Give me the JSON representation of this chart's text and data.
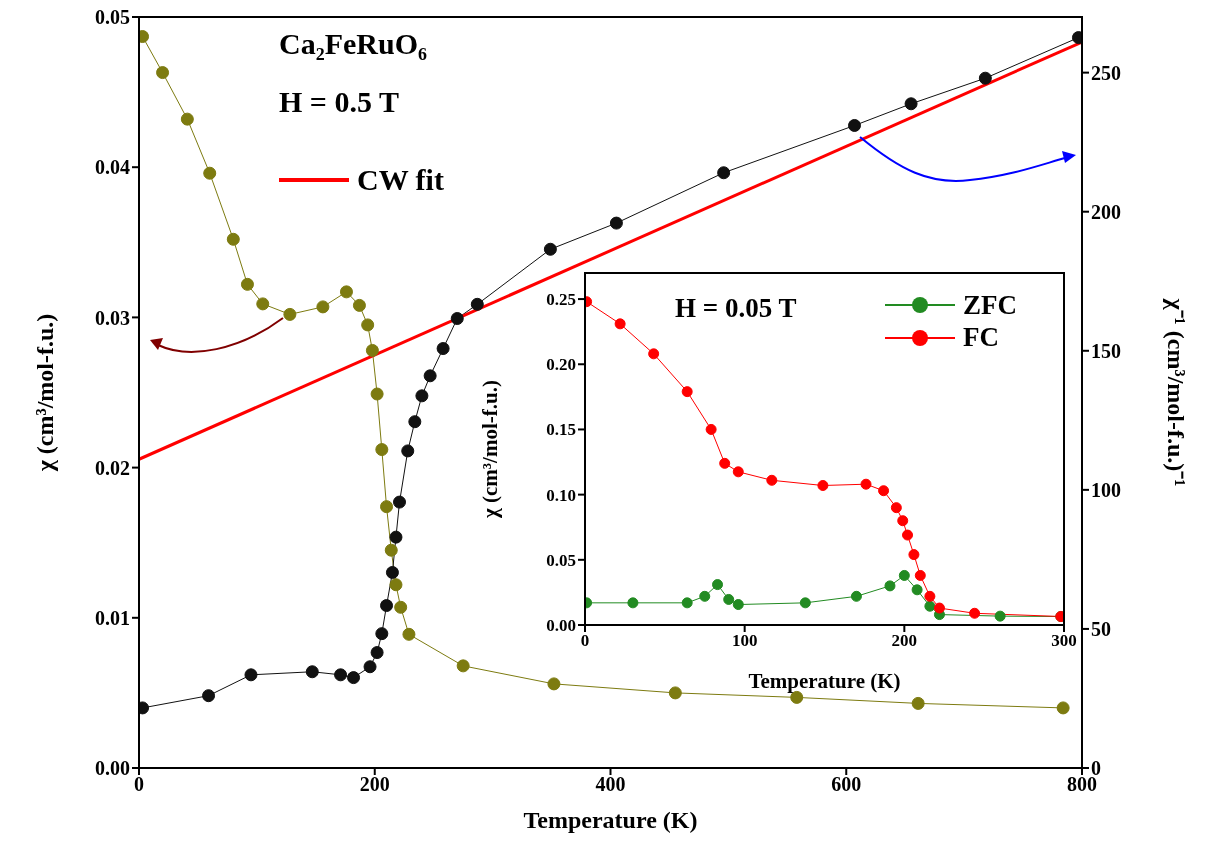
{
  "chart_data": [
    {
      "type": "line",
      "xlabel": "Temperature (K)",
      "ylabel": "χ (cm³/mol-f.u.)",
      "y2label": "χ⁻¹ (cm³/mol-f.u.)⁻¹",
      "annotations": [
        "Ca₂FeRuO₆",
        "H = 0.5 T"
      ],
      "xlim": [
        0,
        800
      ],
      "xticks": [
        0,
        200,
        400,
        600,
        800
      ],
      "ylim": [
        0,
        0.05
      ],
      "yticks": [
        {
          "value": 0,
          "label": "0.00"
        },
        0.01,
        0.02,
        0.03,
        0.04,
        0.05
      ],
      "y2lim": [
        0,
        270
      ],
      "y2ticks": [
        0,
        50,
        100,
        150,
        200,
        250
      ],
      "legend": "top left",
      "grid": false,
      "series": [
        {
          "marker": "circle",
          "color": "#7d7b10",
          "x": [
            3,
            20,
            41,
            60,
            80,
            92,
            105,
            128,
            156,
            176,
            187,
            194,
            198,
            202,
            206,
            210,
            214,
            218,
            222,
            229,
            275,
            352,
            455,
            558,
            661,
            784
          ],
          "values": [
            0.0487,
            0.0463,
            0.0432,
            0.0396,
            0.0352,
            0.0322,
            0.0309,
            0.0302,
            0.0307,
            0.0317,
            0.0308,
            0.0295,
            0.0278,
            0.0249,
            0.0212,
            0.0174,
            0.0145,
            0.0122,
            0.0107,
            0.0089,
            0.0068,
            0.0056,
            0.005,
            0.0047,
            0.0043,
            0.004
          ]
        },
        {
          "marker": "circle",
          "axis": "y2",
          "color": "#111111",
          "x": [
            3,
            59,
            95,
            147,
            171,
            182,
            196,
            202,
            206,
            210,
            215,
            218,
            221,
            228,
            234,
            240,
            247,
            258,
            270,
            287,
            349,
            405,
            496,
            607,
            655,
            718,
            797
          ],
          "values": [
            21.6,
            26,
            33.5,
            34.6,
            33.5,
            32.5,
            36.4,
            41.5,
            48.3,
            58.4,
            70.3,
            83,
            95.6,
            114,
            124.5,
            133.8,
            141,
            150.8,
            161.6,
            166.7,
            186.5,
            195.9,
            214,
            231,
            238.8,
            248,
            262.6
          ]
        },
        {
          "name": "CW fit",
          "marker": "none",
          "axis": "y2",
          "color": "#ff0000",
          "x": [
            0,
            800
          ],
          "values": [
            111,
            261
          ]
        }
      ]
    },
    {
      "type": "line",
      "xlabel": "Temperature (K)",
      "ylabel": "χ (cm³/mol-f.u.)",
      "annotations": [
        "H = 0.05 T"
      ],
      "xlim": [
        0,
        300
      ],
      "xticks": [
        0,
        100,
        200,
        300
      ],
      "ylim": [
        0,
        0.27
      ],
      "yticks": [
        {
          "value": 0,
          "label": "0.00"
        },
        0.05,
        {
          "value": 0.1,
          "label": "0.10"
        },
        0.15,
        {
          "value": 0.2,
          "label": "0.20"
        },
        0.25
      ],
      "legend": "top right",
      "grid": false,
      "series": [
        {
          "name": "ZFC",
          "marker": "circle",
          "color": "#228b22",
          "x": [
            1,
            30,
            64,
            75,
            83,
            90,
            96,
            138,
            170,
            191,
            200,
            208,
            216,
            222,
            260,
            298
          ],
          "values": [
            0.017,
            0.017,
            0.017,
            0.022,
            0.031,
            0.0196,
            0.0157,
            0.017,
            0.022,
            0.03,
            0.038,
            0.027,
            0.0144,
            0.008,
            0.0068,
            0.0065
          ]
        },
        {
          "name": "FC",
          "marker": "circle",
          "color": "#ff0000",
          "x": [
            1,
            22,
            43,
            64,
            79,
            87.5,
            96,
            117,
            149,
            176,
            187,
            195,
            199,
            202,
            206,
            210,
            216,
            222,
            244,
            298
          ],
          "values": [
            0.248,
            0.231,
            0.208,
            0.179,
            0.15,
            0.124,
            0.1175,
            0.111,
            0.107,
            0.108,
            0.103,
            0.09,
            0.08,
            0.069,
            0.054,
            0.038,
            0.022,
            0.013,
            0.009,
            0.0065
          ]
        }
      ]
    }
  ]
}
